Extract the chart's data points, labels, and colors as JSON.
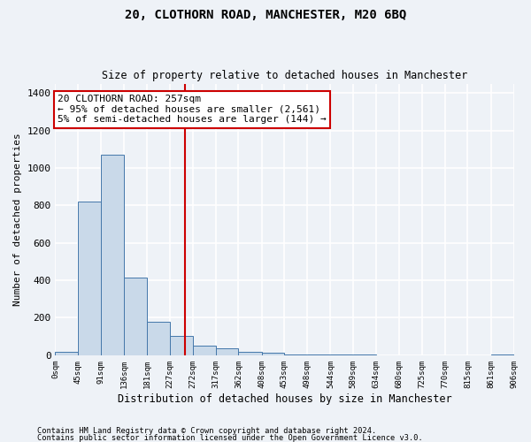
{
  "title1": "20, CLOTHORN ROAD, MANCHESTER, M20 6BQ",
  "title2": "Size of property relative to detached houses in Manchester",
  "xlabel": "Distribution of detached houses by size in Manchester",
  "ylabel": "Number of detached properties",
  "footnote1": "Contains HM Land Registry data © Crown copyright and database right 2024.",
  "footnote2": "Contains public sector information licensed under the Open Government Licence v3.0.",
  "annotation_line1": "20 CLOTHORN ROAD: 257sqm",
  "annotation_line2": "← 95% of detached houses are smaller (2,561)",
  "annotation_line3": "5% of semi-detached houses are larger (144) →",
  "bar_color": "#c9d9e9",
  "bar_edge_color": "#4477aa",
  "red_line_x": 257,
  "bin_edges": [
    0,
    45,
    91,
    136,
    181,
    227,
    272,
    317,
    362,
    408,
    453,
    498,
    544,
    589,
    634,
    680,
    725,
    770,
    815,
    861,
    906
  ],
  "bar_heights": [
    20,
    820,
    1070,
    415,
    180,
    105,
    50,
    35,
    20,
    15,
    5,
    3,
    2,
    2,
    1,
    1,
    1,
    1,
    1,
    5
  ],
  "ylim": [
    0,
    1450
  ],
  "yticks": [
    0,
    200,
    400,
    600,
    800,
    1000,
    1200,
    1400
  ],
  "background_color": "#eef2f7",
  "grid_color": "#ffffff",
  "annotation_box_color": "#ffffff",
  "annotation_box_edge": "#cc0000",
  "red_line_color": "#cc0000",
  "font_family": "DejaVu Sans Mono"
}
